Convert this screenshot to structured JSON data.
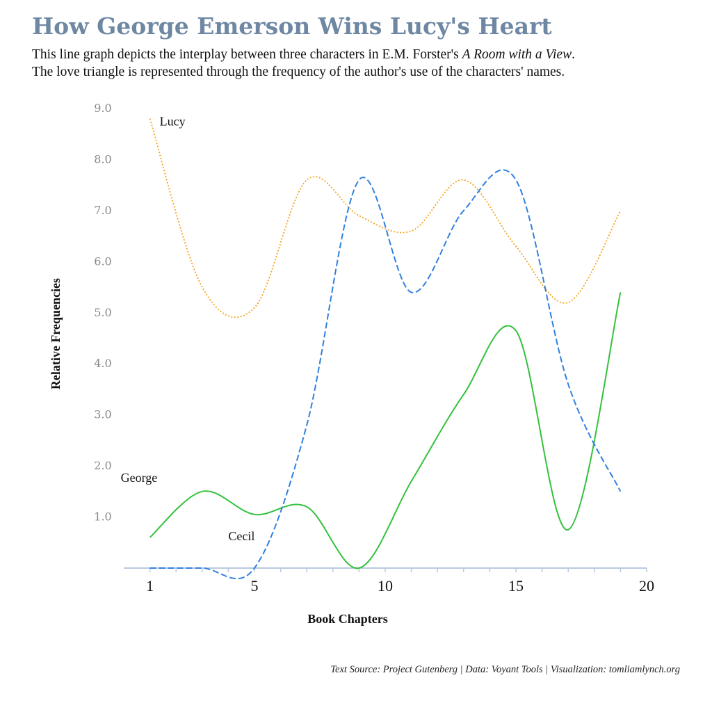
{
  "title": "How George Emerson Wins Lucy's Heart",
  "subtitle": {
    "line1_pre": "This line graph depicts the interplay between three characters in E.M. Forster's ",
    "line1_book": "A Room with a View",
    "line1_post": ".",
    "line2": "The love triangle is represented through the frequency of the author's use of the characters' names."
  },
  "source": "Text Source: Project Gutenberg | Data: Voyant Tools | Visualization: tomliamlynch.org",
  "colors": {
    "Lucy": "#f5a31a",
    "George": "#33c13c",
    "Cecil": "#2f80e0",
    "axis": "#b8c9e0",
    "title": "#6e87a3"
  },
  "chart_data": {
    "type": "line",
    "xlabel": "Book Chapters",
    "ylabel": "Relative Frequencies",
    "xlim": [
      0,
      20
    ],
    "ylim": [
      0,
      9
    ],
    "x_ticks": [
      1,
      5,
      10,
      15,
      20
    ],
    "y_ticks": [
      "1.0",
      "2.0",
      "3.0",
      "4.0",
      "5.0",
      "6.0",
      "7.0",
      "8.0",
      "9.0"
    ],
    "x": [
      1,
      3,
      5,
      7,
      9,
      11,
      13,
      15,
      17,
      19
    ],
    "series": [
      {
        "name": "Lucy",
        "style": "dotted",
        "label_x": 1,
        "label_y": 8.8,
        "values": [
          8.8,
          5.5,
          5.1,
          7.6,
          6.9,
          6.6,
          7.6,
          6.3,
          5.2,
          7.0
        ]
      },
      {
        "name": "George",
        "style": "solid",
        "label_x": 1,
        "label_y": 1.2,
        "values": [
          0.6,
          1.5,
          1.05,
          1.2,
          0.0,
          1.7,
          3.4,
          4.65,
          0.75,
          5.4
        ]
      },
      {
        "name": "Cecil",
        "style": "dashed",
        "label_x": 4,
        "label_y": 0.3,
        "values": [
          0.0,
          0.0,
          0.0,
          2.8,
          7.6,
          5.4,
          7.0,
          7.6,
          3.6,
          1.5
        ]
      }
    ]
  }
}
